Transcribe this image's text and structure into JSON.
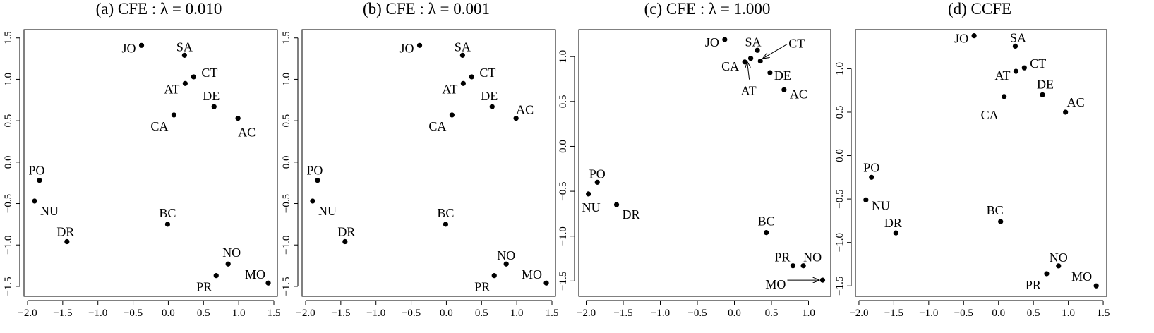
{
  "chart_data": [
    {
      "type": "scatter",
      "title": "(a) CFE : λ = 0.010",
      "xlabel": "",
      "ylabel": "",
      "xlim": [
        -2.05,
        1.55
      ],
      "ylim": [
        -1.62,
        1.6
      ],
      "xticks": [
        -2.0,
        -1.5,
        -1.0,
        -0.5,
        0.0,
        0.5,
        1.0,
        1.5
      ],
      "xtick_labels": [
        "−2.0",
        "−1.5",
        "−1.0",
        "−0.5",
        "0.0",
        "0.5",
        "1.0",
        "1.5"
      ],
      "yticks": [
        -1.5,
        -1.0,
        -0.5,
        0.0,
        0.5,
        1.0,
        1.5
      ],
      "ytick_labels": [
        "−1.5",
        "−1.0",
        "−0.5",
        "0.0",
        "0.5",
        "1.0",
        "1.5"
      ],
      "points": [
        {
          "label": "JO",
          "x": -0.38,
          "y": 1.41
        },
        {
          "label": "SA",
          "x": 0.23,
          "y": 1.29
        },
        {
          "label": "CT",
          "x": 0.36,
          "y": 1.03
        },
        {
          "label": "AT",
          "x": 0.24,
          "y": 0.95
        },
        {
          "label": "DE",
          "x": 0.65,
          "y": 0.67
        },
        {
          "label": "CA",
          "x": 0.08,
          "y": 0.57
        },
        {
          "label": "AC",
          "x": 0.99,
          "y": 0.53
        },
        {
          "label": "PO",
          "x": -1.83,
          "y": -0.22
        },
        {
          "label": "NU",
          "x": -1.9,
          "y": -0.47
        },
        {
          "label": "BC",
          "x": -0.01,
          "y": -0.75
        },
        {
          "label": "DR",
          "x": -1.44,
          "y": -0.96
        },
        {
          "label": "NO",
          "x": 0.85,
          "y": -1.23
        },
        {
          "label": "PR",
          "x": 0.68,
          "y": -1.37
        },
        {
          "label": "MO",
          "x": 1.42,
          "y": -1.46
        }
      ]
    },
    {
      "type": "scatter",
      "title": "(b) CFE : λ = 0.001",
      "xlabel": "",
      "ylabel": "",
      "xlim": [
        -2.05,
        1.55
      ],
      "ylim": [
        -1.62,
        1.6
      ],
      "xticks": [
        -2.0,
        -1.5,
        -1.0,
        -0.5,
        0.0,
        0.5,
        1.0,
        1.5
      ],
      "xtick_labels": [
        "−2.0",
        "−1.5",
        "−1.0",
        "−0.5",
        "0.0",
        "0.5",
        "1.0",
        "1.5"
      ],
      "yticks": [
        -1.5,
        -1.0,
        -0.5,
        0.0,
        0.5,
        1.0,
        1.5
      ],
      "ytick_labels": [
        "−1.5",
        "−1.0",
        "−0.5",
        "0.0",
        "0.5",
        "1.0",
        "1.5"
      ],
      "points": [
        {
          "label": "JO",
          "x": -0.38,
          "y": 1.41
        },
        {
          "label": "SA",
          "x": 0.23,
          "y": 1.29
        },
        {
          "label": "CT",
          "x": 0.36,
          "y": 1.03
        },
        {
          "label": "AT",
          "x": 0.24,
          "y": 0.95
        },
        {
          "label": "DE",
          "x": 0.65,
          "y": 0.67
        },
        {
          "label": "CA",
          "x": 0.08,
          "y": 0.57
        },
        {
          "label": "AC",
          "x": 0.99,
          "y": 0.53
        },
        {
          "label": "PO",
          "x": -1.83,
          "y": -0.22
        },
        {
          "label": "NU",
          "x": -1.9,
          "y": -0.47
        },
        {
          "label": "BC",
          "x": -0.01,
          "y": -0.75
        },
        {
          "label": "DR",
          "x": -1.44,
          "y": -0.96
        },
        {
          "label": "NO",
          "x": 0.85,
          "y": -1.23
        },
        {
          "label": "PR",
          "x": 0.68,
          "y": -1.37
        },
        {
          "label": "MO",
          "x": 1.42,
          "y": -1.46
        }
      ]
    },
    {
      "type": "scatter",
      "title": "(c) CFE : λ = 1.000",
      "xlabel": "",
      "ylabel": "",
      "xlim": [
        -2.1,
        1.3
      ],
      "ylim": [
        -1.67,
        1.3
      ],
      "xticks": [
        -2.0,
        -1.5,
        -1.0,
        -0.5,
        0.0,
        0.5,
        1.0
      ],
      "xtick_labels": [
        "−2.0",
        "−1.5",
        "−1.0",
        "−0.5",
        "0.0",
        "0.5",
        "1.0"
      ],
      "yticks": [
        -1.5,
        -1.0,
        -0.5,
        0.0,
        0.5,
        1.0
      ],
      "ytick_labels": [
        "−1.5",
        "−1.0",
        "−0.5",
        "0.0",
        "0.5",
        "1.0"
      ],
      "points": [
        {
          "label": "JO",
          "x": -0.13,
          "y": 1.19
        },
        {
          "label": "SA",
          "x": 0.31,
          "y": 1.07
        },
        {
          "label": "CT",
          "x": 0.35,
          "y": 0.95
        },
        {
          "label": "AT",
          "x": 0.22,
          "y": 0.98
        },
        {
          "label": "CA",
          "x": 0.14,
          "y": 0.94
        },
        {
          "label": "DE",
          "x": 0.48,
          "y": 0.82
        },
        {
          "label": "AC",
          "x": 0.67,
          "y": 0.63
        },
        {
          "label": "PO",
          "x": -1.85,
          "y": -0.4
        },
        {
          "label": "NU",
          "x": -1.97,
          "y": -0.53
        },
        {
          "label": "DR",
          "x": -1.59,
          "y": -0.65
        },
        {
          "label": "BC",
          "x": 0.43,
          "y": -0.96
        },
        {
          "label": "PR",
          "x": 0.79,
          "y": -1.33
        },
        {
          "label": "NO",
          "x": 0.93,
          "y": -1.33
        },
        {
          "label": "MO",
          "x": 1.19,
          "y": -1.49
        }
      ]
    },
    {
      "type": "scatter",
      "title": "(d) CCFE",
      "xlabel": "",
      "ylabel": "",
      "xlim": [
        -2.05,
        1.55
      ],
      "ylim": [
        -1.62,
        1.45
      ],
      "xticks": [
        -2.0,
        -1.5,
        -1.0,
        -0.5,
        0.0,
        0.5,
        1.0,
        1.5
      ],
      "xtick_labels": [
        "−2.0",
        "−1.5",
        "−1.0",
        "−0.5",
        "0.0",
        "0.5",
        "1.0",
        "1.5"
      ],
      "yticks": [
        -1.5,
        -1.0,
        -0.5,
        0.0,
        0.5,
        1.0
      ],
      "ytick_labels": [
        "−1.5",
        "−1.0",
        "−0.5",
        "0.0",
        "0.5",
        "1.0"
      ],
      "points": [
        {
          "label": "JO",
          "x": -0.35,
          "y": 1.38
        },
        {
          "label": "SA",
          "x": 0.24,
          "y": 1.26
        },
        {
          "label": "CT",
          "x": 0.37,
          "y": 1.01
        },
        {
          "label": "AT",
          "x": 0.25,
          "y": 0.97
        },
        {
          "label": "DE",
          "x": 0.63,
          "y": 0.7
        },
        {
          "label": "CA",
          "x": 0.08,
          "y": 0.68
        },
        {
          "label": "AC",
          "x": 0.96,
          "y": 0.5
        },
        {
          "label": "PO",
          "x": -1.82,
          "y": -0.25
        },
        {
          "label": "NU",
          "x": -1.9,
          "y": -0.51
        },
        {
          "label": "BC",
          "x": 0.03,
          "y": -0.76
        },
        {
          "label": "DR",
          "x": -1.47,
          "y": -0.89
        },
        {
          "label": "NO",
          "x": 0.86,
          "y": -1.27
        },
        {
          "label": "PR",
          "x": 0.69,
          "y": -1.36
        },
        {
          "label": "MO",
          "x": 1.4,
          "y": -1.5
        }
      ]
    }
  ]
}
